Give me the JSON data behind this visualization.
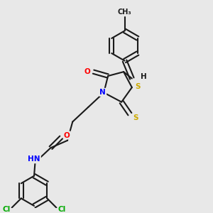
{
  "background_color": "#e8e8e8",
  "fig_width": 3.0,
  "fig_height": 3.0,
  "dpi": 100,
  "bond_color": "#1a1a1a",
  "bond_lw": 1.5,
  "atom_colors": {
    "N": "#0000ff",
    "O": "#ff0000",
    "S": "#ccaa00",
    "Cl": "#00aa00",
    "C": "#1a1a1a",
    "H": "#1a1a1a"
  },
  "font_size": 7.5
}
